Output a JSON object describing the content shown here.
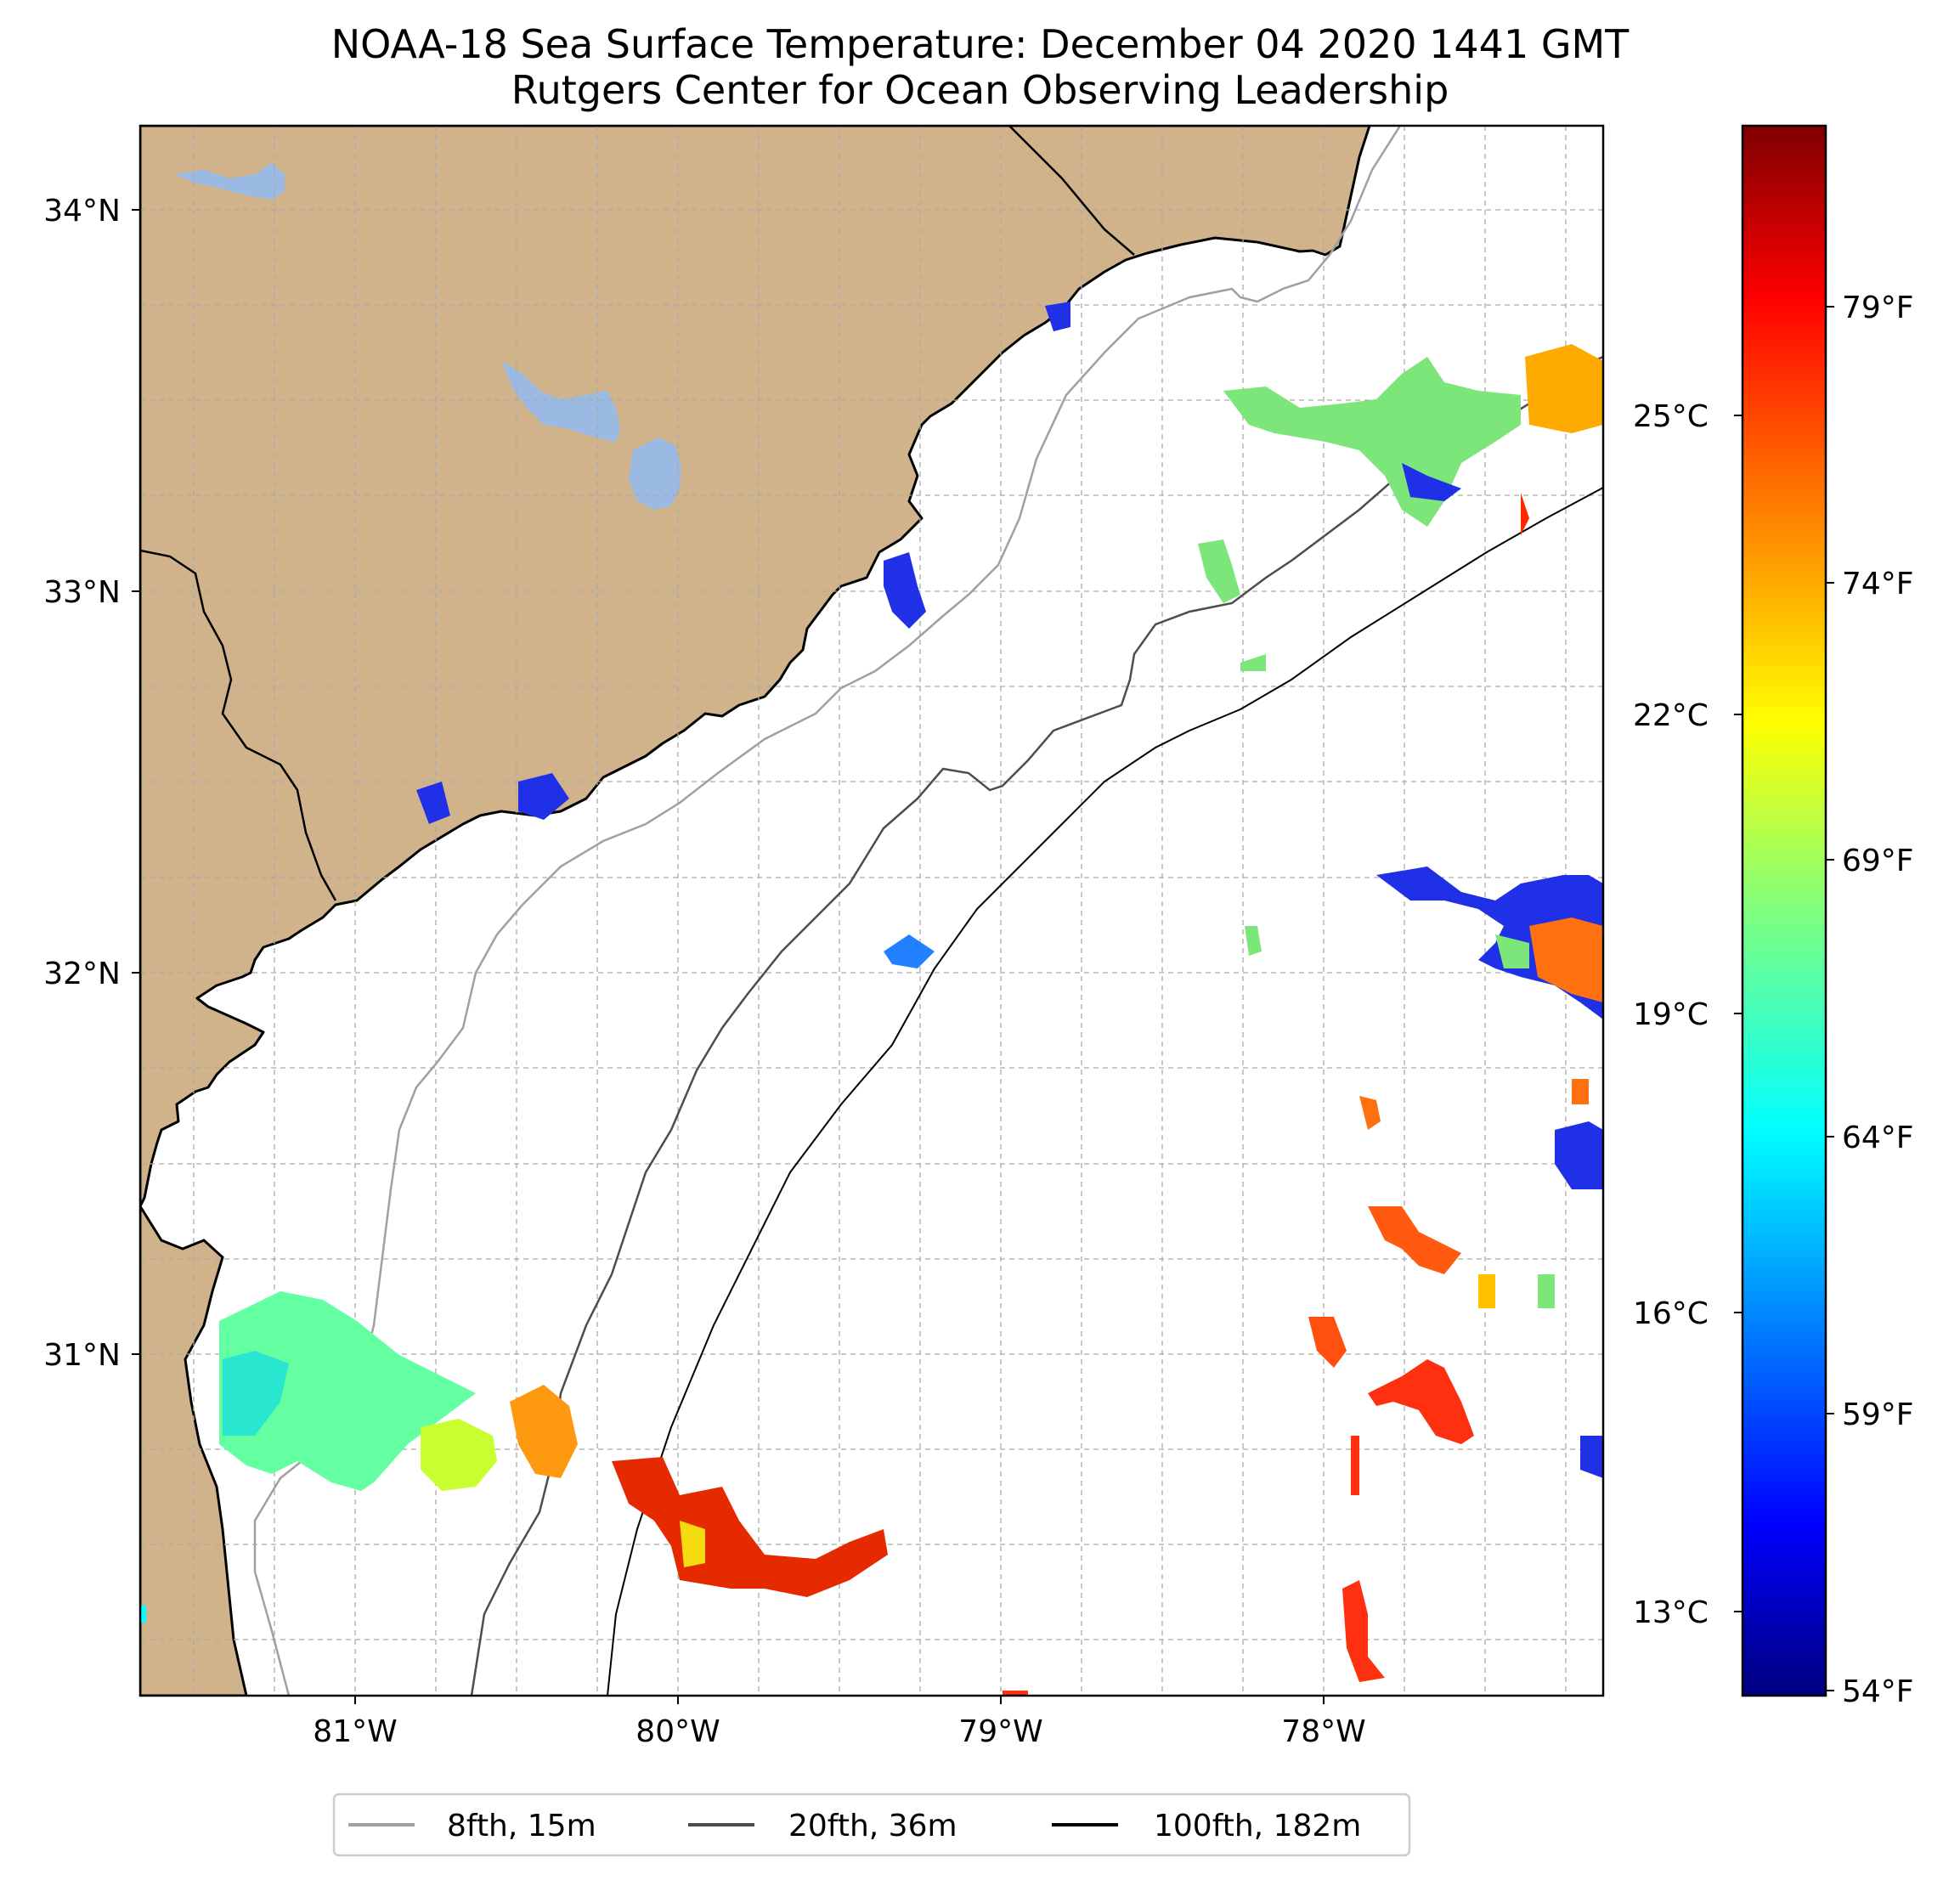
{
  "title": {
    "line1": "NOAA-18 Sea Surface Temperature: December 04 2020 1441 GMT",
    "line2": "Rutgers Center for Ocean Observing Leadership"
  },
  "map": {
    "lat_labels": [
      "34°N",
      "33°N",
      "32°N",
      "31°N"
    ],
    "lon_labels": [
      "81°W",
      "80°W",
      "79°W",
      "78°W"
    ],
    "land_color": "#d0b38b",
    "water_body_color": "#9ab9e3",
    "ocean_color": "#ffffff",
    "gridlines": true
  },
  "colorbar": {
    "celsius_labels": [
      "25°C",
      "22°C",
      "19°C",
      "16°C",
      "13°C"
    ],
    "fahrenheit_labels": [
      "79°F",
      "74°F",
      "69°F",
      "64°F",
      "59°F",
      "54°F"
    ],
    "colormap": "jet"
  },
  "legend": {
    "items": [
      {
        "label": "8fth, 15m",
        "color": "#a0a0a0"
      },
      {
        "label": "20fth, 36m",
        "color": "#4d4d4d"
      },
      {
        "label": "100fth, 182m",
        "color": "#000000"
      }
    ]
  }
}
